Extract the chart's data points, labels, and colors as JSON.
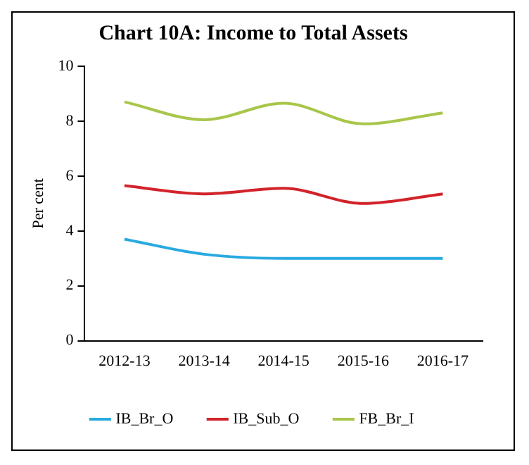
{
  "chart_data": {
    "type": "line",
    "title": "Chart 10A: Income to Total Assets",
    "ylabel": "Per cent",
    "categories": [
      "2012-13",
      "2013-14",
      "2014-15",
      "2015-16",
      "2016-17"
    ],
    "series": [
      {
        "name": "IB_Br_O",
        "color": "#29a9e0",
        "values": [
          3.7,
          3.15,
          3.0,
          3.0,
          3.0
        ]
      },
      {
        "name": "IB_Sub_O",
        "color": "#d2232a",
        "values": [
          5.65,
          5.35,
          5.55,
          5.0,
          5.35
        ]
      },
      {
        "name": "FB_Br_I",
        "color": "#a8c64a",
        "values": [
          8.7,
          8.05,
          8.65,
          7.9,
          8.3
        ]
      }
    ],
    "ylim": [
      0,
      10
    ],
    "yticks": [
      0,
      2,
      4,
      6,
      8,
      10
    ],
    "grid": false,
    "legend": "bottom",
    "marker": "none",
    "line_style": "solid"
  }
}
